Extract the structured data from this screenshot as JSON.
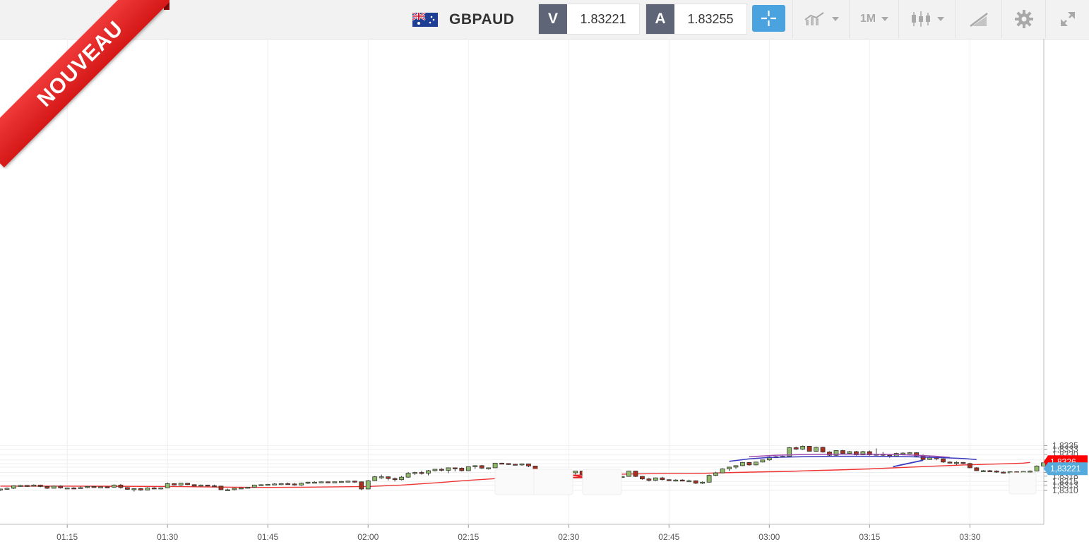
{
  "header": {
    "pair": "GBPAUD",
    "bid_label": "V",
    "bid_value": "1.83221",
    "ask_label": "A",
    "ask_value": "1.83255",
    "timeframe": "1M"
  },
  "badge": {
    "text": "NOUVEAU"
  },
  "icons": {
    "flag": "gb-au-flag-icon",
    "crosshair": "crosshair-icon",
    "indicators": "indicators-icon",
    "timeframe_caret": "chevron-down-icon",
    "chart_type": "candlestick-icon",
    "drawing": "drawing-tools-icon",
    "settings": "gear-icon",
    "fullscreen": "expand-icon"
  },
  "colors": {
    "bull": "#8fbb6a",
    "bear": "#a8301c",
    "ma_line": "#ee3333",
    "bid_tag": "#ff0000",
    "ask_tag": "#55aadd",
    "purple_curve": "#a24bb0",
    "blue_curve": "#3a3abf",
    "triangle": "#e22222"
  },
  "chart_data": {
    "type": "candlestick",
    "title": "",
    "xlabel": "",
    "ylabel": "",
    "ylim": [
      1.83095,
      1.83355
    ],
    "y_ticks": [
      "1,8335",
      "1,8333",
      "1,8330",
      "1,8327",
      "1,8325",
      "1,8323",
      "1,8320",
      "1,8318",
      "1,8315",
      "1,8313",
      "1,8310"
    ],
    "y_tick_values": [
      1.8335,
      1.8333,
      1.833,
      1.8327,
      1.8325,
      1.8323,
      1.832,
      1.8318,
      1.8315,
      1.8313,
      1.831
    ],
    "x_ticks": [
      "01:15",
      "01:30",
      "01:45",
      "02:00",
      "02:15",
      "02:30",
      "02:45",
      "03:00",
      "03:15",
      "03:30"
    ],
    "x_tick_values": [
      10,
      25,
      40,
      55,
      70,
      85,
      100,
      115,
      130,
      145
    ],
    "price_tags": [
      {
        "label": "1,8326",
        "value": 1.8326,
        "color": "#ff0000"
      },
      {
        "label": "1,83221",
        "value": 1.83221,
        "color": "#55aadd"
      }
    ],
    "candles": [
      [
        1.83102,
        1.8311,
        1.83098,
        1.83108
      ],
      [
        1.83108,
        1.83116,
        1.83104,
        1.83112
      ],
      [
        1.83112,
        1.83128,
        1.83108,
        1.83126
      ],
      [
        1.83126,
        1.83132,
        1.83122,
        1.83128
      ],
      [
        1.83128,
        1.8313,
        1.8312,
        1.83126
      ],
      [
        1.83126,
        1.83134,
        1.83122,
        1.8313
      ],
      [
        1.8313,
        1.83132,
        1.83118,
        1.83122
      ],
      [
        1.83122,
        1.83124,
        1.83108,
        1.83112
      ],
      [
        1.83112,
        1.83126,
        1.8311,
        1.83124
      ],
      [
        1.83124,
        1.83128,
        1.8311,
        1.83114
      ],
      [
        1.83114,
        1.83116,
        1.83112,
        1.83114
      ],
      [
        1.83114,
        1.83118,
        1.83108,
        1.83112
      ],
      [
        1.83112,
        1.83122,
        1.8311,
        1.83116
      ],
      [
        1.83116,
        1.83124,
        1.83112,
        1.83122
      ],
      [
        1.83122,
        1.83122,
        1.83116,
        1.83118
      ],
      [
        1.83118,
        1.8312,
        1.83114,
        1.8312
      ],
      [
        1.8312,
        1.83122,
        1.83116,
        1.83118
      ],
      [
        1.83118,
        1.83134,
        1.83116,
        1.8313
      ],
      [
        1.8313,
        1.83136,
        1.8311,
        1.83116
      ],
      [
        1.83116,
        1.83118,
        1.83104,
        1.83106
      ],
      [
        1.83106,
        1.83112,
        1.83094,
        1.8311
      ],
      [
        1.8311,
        1.83114,
        1.83098,
        1.83102
      ],
      [
        1.83102,
        1.83118,
        1.831,
        1.83114
      ],
      [
        1.83114,
        1.83118,
        1.83108,
        1.8311
      ],
      [
        1.8311,
        1.83116,
        1.83106,
        1.83114
      ],
      [
        1.83114,
        1.83144,
        1.83112,
        1.83138
      ],
      [
        1.83138,
        1.8314,
        1.83128,
        1.8313
      ],
      [
        1.8313,
        1.83142,
        1.83126,
        1.8314
      ],
      [
        1.8314,
        1.83142,
        1.8313,
        1.83132
      ],
      [
        1.83132,
        1.83134,
        1.83122,
        1.83124
      ],
      [
        1.83124,
        1.83134,
        1.83122,
        1.8313
      ],
      [
        1.8313,
        1.83132,
        1.83122,
        1.83126
      ],
      [
        1.83126,
        1.83132,
        1.83122,
        1.83124
      ],
      [
        1.83124,
        1.83126,
        1.83102,
        1.83104
      ],
      [
        1.83104,
        1.8311,
        1.831,
        1.83104
      ],
      [
        1.83104,
        1.83114,
        1.831,
        1.83112
      ],
      [
        1.83112,
        1.83116,
        1.83108,
        1.83114
      ],
      [
        1.83114,
        1.8312,
        1.8311,
        1.83118
      ],
      [
        1.83118,
        1.83132,
        1.83116,
        1.8313
      ],
      [
        1.8313,
        1.83134,
        1.83126,
        1.83132
      ],
      [
        1.83132,
        1.83136,
        1.83128,
        1.83134
      ],
      [
        1.83134,
        1.8314,
        1.8313,
        1.83136
      ],
      [
        1.83136,
        1.8314,
        1.8313,
        1.83138
      ],
      [
        1.83138,
        1.83144,
        1.83132,
        1.83136
      ],
      [
        1.83136,
        1.83142,
        1.83126,
        1.8313
      ],
      [
        1.8313,
        1.83144,
        1.83126,
        1.8314
      ],
      [
        1.8314,
        1.83148,
        1.83136,
        1.83146
      ],
      [
        1.83146,
        1.8315,
        1.8314,
        1.83146
      ],
      [
        1.83146,
        1.8315,
        1.83142,
        1.83148
      ],
      [
        1.83148,
        1.8315,
        1.83142,
        1.83146
      ],
      [
        1.83146,
        1.8315,
        1.83142,
        1.83148
      ],
      [
        1.83148,
        1.83152,
        1.83144,
        1.8315
      ],
      [
        1.8315,
        1.83154,
        1.83146,
        1.83152
      ],
      [
        1.83152,
        1.83154,
        1.83142,
        1.83148
      ],
      [
        1.83148,
        1.8315,
        1.83102,
        1.83108
      ],
      [
        1.83108,
        1.83158,
        1.83106,
        1.83154
      ],
      [
        1.83154,
        1.8318,
        1.83152,
        1.83176
      ],
      [
        1.83176,
        1.83188,
        1.83164,
        1.83176
      ],
      [
        1.83176,
        1.83178,
        1.83156,
        1.83166
      ],
      [
        1.83166,
        1.83172,
        1.8315,
        1.8316
      ],
      [
        1.8316,
        1.8318,
        1.83156,
        1.83174
      ],
      [
        1.83174,
        1.83202,
        1.8317,
        1.83196
      ],
      [
        1.83196,
        1.83204,
        1.83186,
        1.832
      ],
      [
        1.832,
        1.8321,
        1.83188,
        1.83196
      ],
      [
        1.83196,
        1.83214,
        1.83184,
        1.8321
      ],
      [
        1.8321,
        1.8322,
        1.83206,
        1.83218
      ],
      [
        1.83218,
        1.83224,
        1.83206,
        1.83212
      ],
      [
        1.83212,
        1.83226,
        1.83196,
        1.83226
      ],
      [
        1.83226,
        1.83228,
        1.83206,
        1.83224
      ],
      [
        1.83224,
        1.83228,
        1.83206,
        1.8321
      ],
      [
        1.8321,
        1.83232,
        1.83208,
        1.83232
      ],
      [
        1.83232,
        1.8324,
        1.8322,
        1.83238
      ],
      [
        1.83238,
        1.83242,
        1.8322,
        1.83224
      ],
      [
        1.83224,
        1.83228,
        1.83216,
        1.83226
      ],
      [
        1.83226,
        1.83252,
        1.83224,
        1.83252
      ],
      [
        1.83252,
        1.83254,
        1.83246,
        1.8325
      ],
      [
        1.8325,
        1.8325,
        1.83242,
        1.83246
      ],
      [
        1.83246,
        1.83248,
        1.8324,
        1.83242
      ],
      [
        1.83242,
        1.8325,
        1.83238,
        1.83248
      ],
      [
        1.83248,
        1.83248,
        1.8323,
        1.83236
      ],
      [
        1.83236,
        1.83236,
        1.83212,
        1.83214
      ],
      [
        1.83214,
        1.83218,
        1.8321,
        1.83214
      ],
      [
        1.83214,
        1.83216,
        1.8318,
        1.83214
      ],
      [
        1.83214,
        1.83214,
        1.83186,
        1.8319
      ],
      [
        1.8319,
        1.83204,
        1.83186,
        1.832
      ],
      [
        1.832,
        1.83202,
        1.83192,
        1.83198
      ],
      [
        1.83198,
        1.83208,
        1.83188,
        1.83208
      ],
      [
        1.83208,
        1.8321,
        1.83182,
        1.8319
      ],
      [
        1.8319,
        1.83196,
        1.83176,
        1.83184
      ],
      [
        1.83184,
        1.83186,
        1.83174,
        1.83178
      ],
      [
        1.83178,
        1.8318,
        1.83172,
        1.83174
      ],
      [
        1.83174,
        1.8318,
        1.8317,
        1.83178
      ],
      [
        1.83178,
        1.8318,
        1.83172,
        1.83174
      ],
      [
        1.83174,
        1.8318,
        1.8317,
        1.83178
      ],
      [
        1.83178,
        1.8321,
        1.83176,
        1.83208
      ],
      [
        1.83208,
        1.8321,
        1.83174,
        1.83178
      ],
      [
        1.83178,
        1.8318,
        1.8316,
        1.83164
      ],
      [
        1.83164,
        1.8317,
        1.8315,
        1.83156
      ],
      [
        1.83156,
        1.83172,
        1.83152,
        1.8317
      ],
      [
        1.8317,
        1.83176,
        1.83156,
        1.8316
      ],
      [
        1.8316,
        1.83162,
        1.83152,
        1.83156
      ],
      [
        1.83156,
        1.83162,
        1.8315,
        1.83158
      ],
      [
        1.83158,
        1.83162,
        1.83152,
        1.83154
      ],
      [
        1.83154,
        1.8316,
        1.8315,
        1.83154
      ],
      [
        1.83154,
        1.83156,
        1.83136,
        1.8314
      ],
      [
        1.8314,
        1.8315,
        1.83136,
        1.83146
      ],
      [
        1.83146,
        1.83188,
        1.83144,
        1.83184
      ],
      [
        1.83184,
        1.83204,
        1.8318,
        1.83198
      ],
      [
        1.83198,
        1.83224,
        1.83196,
        1.8322
      ],
      [
        1.8322,
        1.83232,
        1.83208,
        1.8323
      ],
      [
        1.8323,
        1.8324,
        1.8322,
        1.83238
      ],
      [
        1.83238,
        1.83258,
        1.83236,
        1.83256
      ],
      [
        1.83256,
        1.83258,
        1.83238,
        1.83242
      ],
      [
        1.83242,
        1.8326,
        1.8324,
        1.83258
      ],
      [
        1.83258,
        1.8327,
        1.83256,
        1.8327
      ],
      [
        1.8327,
        1.8329,
        1.83266,
        1.83286
      ],
      [
        1.83286,
        1.83292,
        1.8328,
        1.83288
      ],
      [
        1.83288,
        1.83294,
        1.83284,
        1.8329
      ],
      [
        1.8329,
        1.83342,
        1.83288,
        1.83338
      ],
      [
        1.83338,
        1.83344,
        1.83326,
        1.8333
      ],
      [
        1.8333,
        1.8335,
        1.83326,
        1.83346
      ],
      [
        1.83346,
        1.83348,
        1.83316,
        1.83318
      ],
      [
        1.83318,
        1.83344,
        1.83316,
        1.8334
      ],
      [
        1.8334,
        1.83344,
        1.8331,
        1.83314
      ],
      [
        1.83314,
        1.83318,
        1.83292,
        1.83296
      ],
      [
        1.83296,
        1.83324,
        1.83292,
        1.83322
      ],
      [
        1.83322,
        1.83326,
        1.83304,
        1.83306
      ],
      [
        1.83306,
        1.8332,
        1.833,
        1.83316
      ],
      [
        1.83316,
        1.8332,
        1.83294,
        1.83298
      ],
      [
        1.83298,
        1.8332,
        1.83296,
        1.83316
      ],
      [
        1.83316,
        1.83322,
        1.83294,
        1.83298
      ],
      [
        1.83298,
        1.83334,
        1.83294,
        1.83302
      ],
      [
        1.83302,
        1.83314,
        1.8329,
        1.83296
      ],
      [
        1.83296,
        1.83302,
        1.83282,
        1.8329
      ],
      [
        1.8329,
        1.8331,
        1.83286,
        1.83306
      ],
      [
        1.83306,
        1.83312,
        1.833,
        1.83308
      ],
      [
        1.83308,
        1.83314,
        1.83302,
        1.8331
      ],
      [
        1.8331,
        1.83312,
        1.83286,
        1.83292
      ],
      [
        1.83292,
        1.833,
        1.83268,
        1.83272
      ],
      [
        1.83272,
        1.83292,
        1.8327,
        1.83284
      ],
      [
        1.83284,
        1.83288,
        1.83268,
        1.83276
      ],
      [
        1.83276,
        1.83278,
        1.83254,
        1.83258
      ],
      [
        1.83258,
        1.83262,
        1.8325,
        1.83256
      ],
      [
        1.83256,
        1.83262,
        1.83242,
        1.83256
      ],
      [
        1.83256,
        1.83258,
        1.83246,
        1.8325
      ],
      [
        1.8325,
        1.83254,
        1.83224,
        1.83226
      ],
      [
        1.83226,
        1.8323,
        1.83208,
        1.8321
      ],
      [
        1.8321,
        1.83214,
        1.83206,
        1.8321
      ],
      [
        1.8321,
        1.83214,
        1.83204,
        1.83208
      ],
      [
        1.83208,
        1.83212,
        1.83198,
        1.83202
      ],
      [
        1.83202,
        1.83206,
        1.83194,
        1.832
      ],
      [
        1.832,
        1.83206,
        1.83192,
        1.83204
      ],
      [
        1.83204,
        1.83206,
        1.83188,
        1.8319
      ],
      [
        1.8319,
        1.83208,
        1.83188,
        1.83206
      ],
      [
        1.83206,
        1.83212,
        1.832,
        1.83208
      ],
      [
        1.83208,
        1.8324,
        1.83206,
        1.83236
      ],
      [
        1.83236,
        1.83256,
        1.83234,
        1.83254
      ]
    ],
    "ma": [
      [
        0,
        1.83124
      ],
      [
        10,
        1.83124
      ],
      [
        25,
        1.83122
      ],
      [
        30,
        1.8312
      ],
      [
        35,
        1.83118
      ],
      [
        40,
        1.83117
      ],
      [
        45,
        1.83118
      ],
      [
        50,
        1.8312
      ],
      [
        55,
        1.83122
      ],
      [
        60,
        1.8313
      ],
      [
        65,
        1.83142
      ],
      [
        70,
        1.83156
      ],
      [
        75,
        1.83168
      ],
      [
        80,
        1.83178
      ],
      [
        85,
        1.83184
      ],
      [
        90,
        1.83188
      ],
      [
        95,
        1.83192
      ],
      [
        100,
        1.83194
      ],
      [
        105,
        1.83195
      ],
      [
        110,
        1.832
      ],
      [
        115,
        1.83204
      ],
      [
        118,
        1.83206
      ],
      [
        121,
        1.8321
      ],
      [
        125,
        1.83214
      ],
      [
        130,
        1.8322
      ],
      [
        135,
        1.83228
      ],
      [
        140,
        1.83236
      ],
      [
        144,
        1.83242
      ],
      [
        150,
        1.83248
      ],
      [
        153,
        1.83252
      ],
      [
        154,
        1.83256
      ]
    ],
    "purple_curve": [
      [
        112,
        1.83288
      ],
      [
        116,
        1.83296
      ],
      [
        120,
        1.833
      ],
      [
        125,
        1.83302
      ],
      [
        130,
        1.83302
      ],
      [
        134,
        1.833
      ],
      [
        137,
        1.83296
      ],
      [
        140,
        1.8329
      ],
      [
        142,
        1.83284
      ]
    ],
    "blue_curve": [
      [
        109,
        1.83262
      ],
      [
        112,
        1.83276
      ],
      [
        115,
        1.83284
      ],
      [
        120,
        1.83288
      ],
      [
        125,
        1.8329
      ],
      [
        130,
        1.8329
      ],
      [
        136,
        1.83288
      ],
      [
        140,
        1.83284
      ],
      [
        144,
        1.83278
      ],
      [
        146,
        1.83272
      ]
    ],
    "blue_line": [
      [
        133.5,
        1.83232
      ],
      [
        138,
        1.83268
      ]
    ],
    "triangle": [
      [
        83.5,
        1.83172
      ],
      [
        85.5,
        1.83186
      ],
      [
        87.7,
        1.83172
      ]
    ]
  }
}
